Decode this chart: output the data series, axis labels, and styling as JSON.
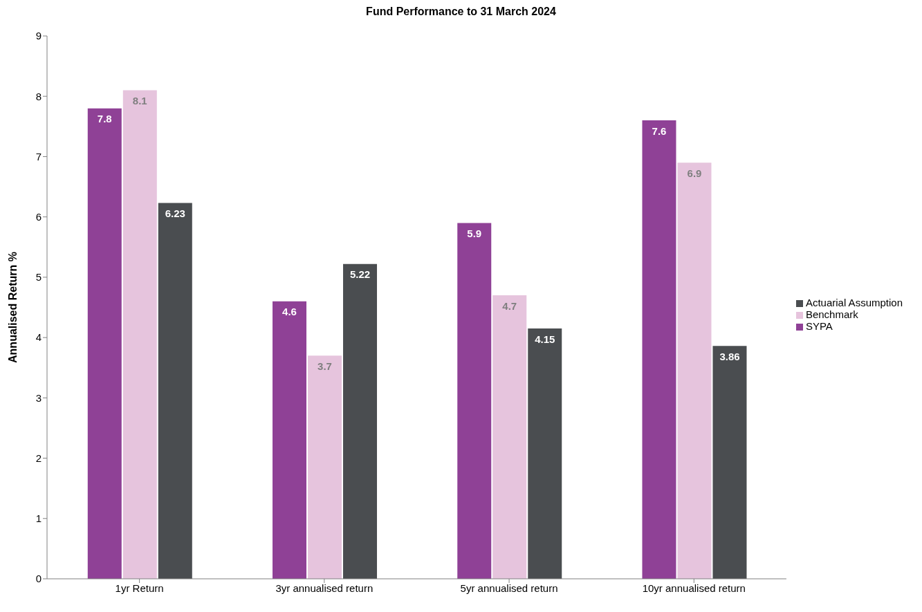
{
  "chart_data": {
    "type": "bar",
    "title": "Fund Performance to 31 March 2024",
    "ylabel": "Annualised Return %",
    "categories": [
      "1yr Return",
      "3yr annualised return",
      "5yr annualised return",
      "10yr annualised return"
    ],
    "series": [
      {
        "name": "SYPA",
        "color": "#8f4196",
        "values": [
          7.8,
          4.6,
          5.9,
          7.6
        ]
      },
      {
        "name": "Benchmark",
        "color": "#e6c4dd",
        "values": [
          8.1,
          3.7,
          4.7,
          6.9
        ]
      },
      {
        "name": "Actuarial Assumption",
        "color": "#4a4d50",
        "values": [
          6.23,
          5.22,
          4.15,
          3.86
        ]
      }
    ],
    "ylim": [
      0,
      9
    ],
    "yticks": [
      0,
      1,
      2,
      3,
      4,
      5,
      6,
      7,
      8,
      9
    ],
    "grid": false,
    "legend": "right",
    "data_labels": true
  }
}
